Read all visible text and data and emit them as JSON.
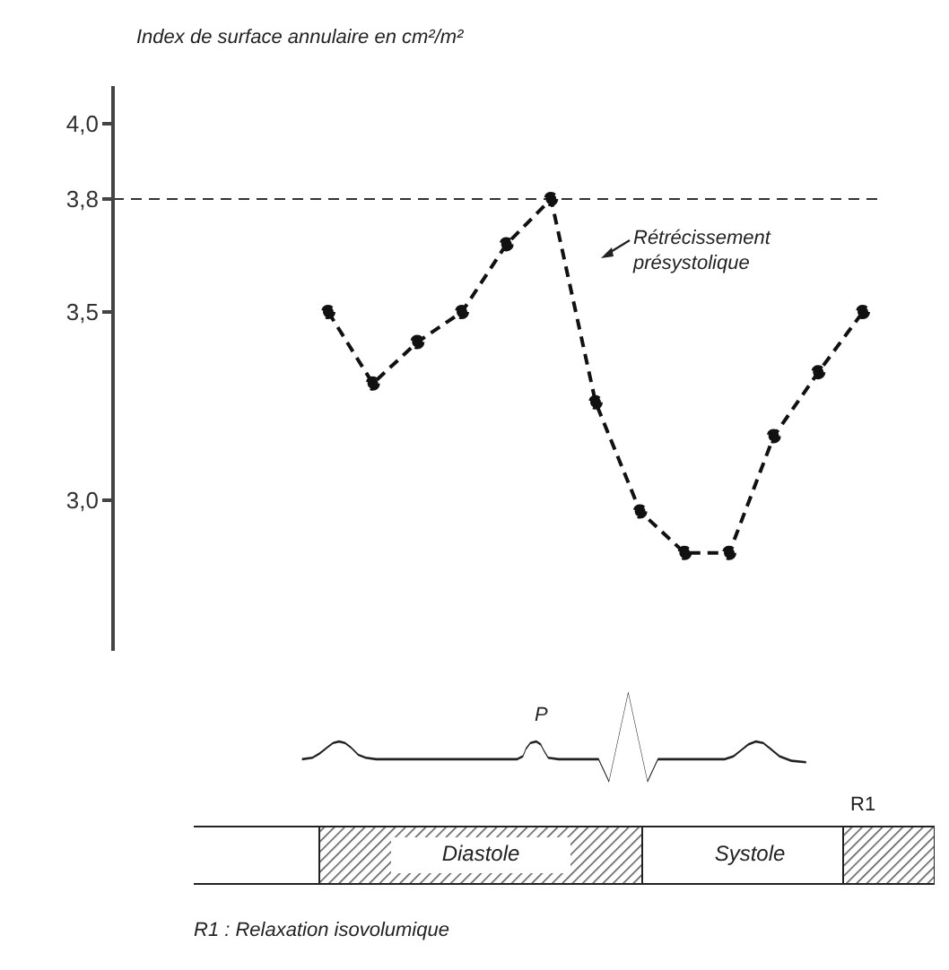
{
  "chart_data": {
    "type": "line",
    "ylabel": "Index de surface annulaire en cm²/m²",
    "categories": [
      null,
      null,
      null,
      null,
      null,
      null,
      null,
      null,
      null,
      null,
      null,
      null,
      null
    ],
    "series": [
      {
        "color": "#111111",
        "values": [
          3.5,
          3.31,
          3.42,
          3.5,
          3.68,
          3.8,
          3.26,
          2.97,
          2.86,
          2.86,
          3.17,
          3.34,
          3.5
        ]
      }
    ],
    "ylim": [
      2.6,
      4.1
    ],
    "yticks": [
      {
        "value": 3.0,
        "label": "3,0"
      },
      {
        "value": 3.5,
        "label": "3,5"
      },
      {
        "value": 3.8,
        "label": "3,8"
      },
      {
        "value": 4.0,
        "label": "4,0"
      }
    ],
    "ref_lines": [
      {
        "axis": "y",
        "value": 3.8,
        "color": "#333333",
        "line_style": "dashed"
      }
    ],
    "marker": "circle",
    "line_style": "dashed",
    "grid": false,
    "legend": false,
    "tick_labels": "y",
    "annotations": [
      "Rétrécissement présystolique",
      "P",
      "R1",
      "Diastole",
      "Systole",
      "R1 : Relaxation isovolumique"
    ]
  }
}
